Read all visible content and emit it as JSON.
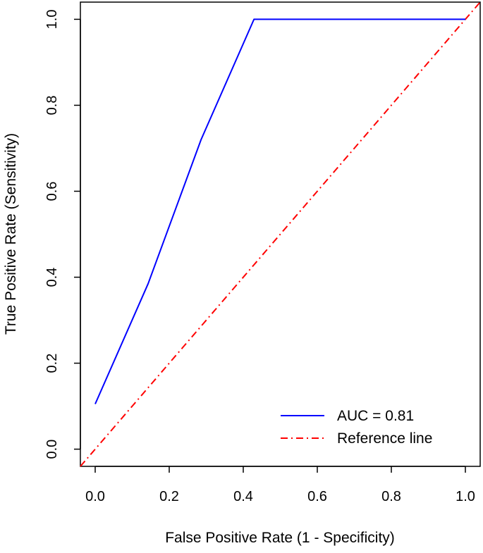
{
  "chart_data": {
    "type": "line",
    "title": "",
    "xlabel": "False Positive Rate (1 - Specificity)",
    "ylabel": "True Positive Rate (Sensitivity)",
    "xlim": [
      -0.04,
      1.04
    ],
    "ylim": [
      -0.04,
      1.04
    ],
    "x_ticks": [
      "0.0",
      "0.2",
      "0.4",
      "0.6",
      "0.8",
      "1.0"
    ],
    "y_ticks": [
      "0.0",
      "0.2",
      "0.4",
      "0.6",
      "0.8",
      "1.0"
    ],
    "grid": false,
    "legend_position": "bottom-right",
    "series": [
      {
        "name": "AUC = 0.81",
        "color": "#0000ff",
        "line_style": "solid",
        "x": [
          0.0,
          0.143,
          0.286,
          0.429,
          1.0
        ],
        "y": [
          0.105,
          0.385,
          0.72,
          1.0,
          1.0
        ]
      },
      {
        "name": "Reference line",
        "color": "#ff0000",
        "line_style": "dash-dot",
        "x": [
          -0.04,
          1.04
        ],
        "y": [
          -0.04,
          1.04
        ]
      }
    ]
  }
}
